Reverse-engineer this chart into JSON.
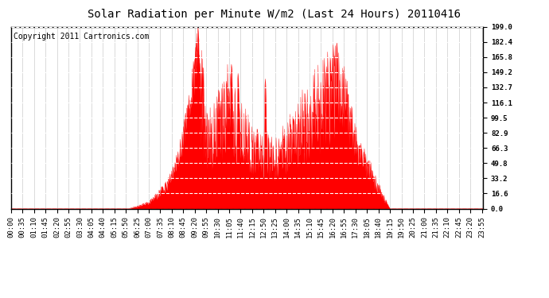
{
  "title": "Solar Radiation per Minute W/m2 (Last 24 Hours) 20110416",
  "copyright": "Copyright 2011 Cartronics.com",
  "yticks": [
    0.0,
    16.6,
    33.2,
    49.8,
    66.3,
    82.9,
    99.5,
    116.1,
    132.7,
    149.2,
    165.8,
    182.4,
    199.0
  ],
  "ymax": 199.0,
  "ymin": 0.0,
  "fill_color": "#FF0000",
  "line_color": "#FF0000",
  "background_color": "#FFFFFF",
  "plot_bg_color": "#FFFFFF",
  "grid_color": "#C0C0C0",
  "title_fontsize": 10,
  "copyright_fontsize": 7,
  "tick_fontsize": 6.5,
  "num_points": 1440,
  "xtick_step": 35
}
